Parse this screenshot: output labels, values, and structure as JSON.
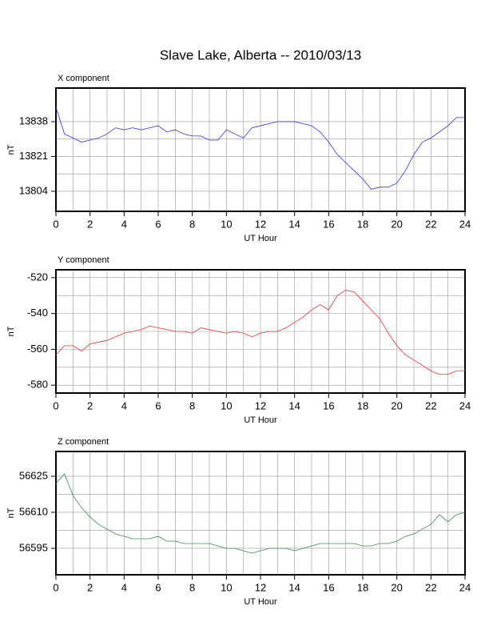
{
  "title": "Slave Lake, Alberta -- 2010/03/13",
  "chart_data": [
    {
      "type": "line",
      "title": "X component",
      "xlabel": "UT Hour",
      "ylabel": "nT",
      "color": "#3333ee",
      "grid": true,
      "x": [
        0,
        0.5,
        1,
        1.5,
        2,
        2.5,
        3,
        3.5,
        4,
        4.5,
        5,
        5.5,
        6,
        6.5,
        7,
        7.5,
        8,
        8.5,
        9,
        9.5,
        10,
        10.5,
        11,
        11.5,
        12,
        12.5,
        13,
        13.5,
        14,
        14.5,
        15,
        15.5,
        16,
        16.5,
        17,
        17.5,
        18,
        18.5,
        19,
        19.5,
        20,
        20.5,
        21,
        21.5,
        22,
        22.5,
        23,
        23.5,
        24
      ],
      "values": [
        13845,
        13832,
        13830,
        13828,
        13829,
        13830,
        13832,
        13835,
        13834,
        13835,
        13834,
        13835,
        13836,
        13833,
        13834,
        13832,
        13831,
        13831,
        13829,
        13829,
        13834,
        13832,
        13830,
        13835,
        13836,
        13837,
        13838,
        13838,
        13838,
        13837,
        13836,
        13833,
        13828,
        13822,
        13818,
        13814,
        13810,
        13805,
        13806,
        13806,
        13808,
        13814,
        13822,
        13828,
        13830,
        13833,
        13836,
        13840,
        13840
      ],
      "xlim": [
        0,
        24
      ],
      "xticks": [
        0,
        2,
        4,
        6,
        8,
        10,
        12,
        14,
        16,
        18,
        20,
        22,
        24
      ],
      "ylim": [
        13794.2,
        13854.4
      ],
      "yticks": [
        13804,
        13821,
        13838
      ]
    },
    {
      "type": "line",
      "title": "Y component",
      "xlabel": "UT Hour",
      "ylabel": "nT",
      "color": "#ee3333",
      "grid": true,
      "x": [
        0,
        0.5,
        1,
        1.5,
        2,
        2.5,
        3,
        3.5,
        4,
        4.5,
        5,
        5.5,
        6,
        6.5,
        7,
        7.5,
        8,
        8.5,
        9,
        9.5,
        10,
        10.5,
        11,
        11.5,
        12,
        12.5,
        13,
        13.5,
        14,
        14.5,
        15,
        15.5,
        16,
        16.5,
        17,
        17.5,
        18,
        18.5,
        19,
        19.5,
        20,
        20.5,
        21,
        21.5,
        22,
        22.5,
        23,
        23.5,
        24
      ],
      "values": [
        -563,
        -558,
        -558,
        -561,
        -557,
        -556,
        -555,
        -553,
        -551,
        -550,
        -549,
        -547,
        -548,
        -549,
        -550,
        -550,
        -551,
        -548,
        -549,
        -550,
        -551,
        -550,
        -551,
        -553,
        -551,
        -550,
        -550,
        -548,
        -545,
        -542,
        -538,
        -535,
        -538,
        -530,
        -527,
        -528,
        -533,
        -538,
        -543,
        -551,
        -558,
        -563,
        -566,
        -569,
        -572,
        -574,
        -574,
        -572,
        -572
      ],
      "xlim": [
        0,
        24
      ],
      "xticks": [
        0,
        2,
        4,
        6,
        8,
        10,
        12,
        14,
        16,
        18,
        20,
        22,
        24
      ],
      "ylim": [
        -584.4,
        -515.6
      ],
      "yticks": [
        -580,
        -560,
        -540,
        -520
      ]
    },
    {
      "type": "line",
      "title": "Z component",
      "xlabel": "UT Hour",
      "ylabel": "nT",
      "color": "#3a8a5a",
      "grid": true,
      "x": [
        0,
        0.5,
        1,
        1.5,
        2,
        2.5,
        3,
        3.5,
        4,
        4.5,
        5,
        5.5,
        6,
        6.5,
        7,
        7.5,
        8,
        8.5,
        9,
        9.5,
        10,
        10.5,
        11,
        11.5,
        12,
        12.5,
        13,
        13.5,
        14,
        14.5,
        15,
        15.5,
        16,
        16.5,
        17,
        17.5,
        18,
        18.5,
        19,
        19.5,
        20,
        20.5,
        21,
        21.5,
        22,
        22.5,
        23,
        23.5,
        24
      ],
      "values": [
        56622,
        56626,
        56617,
        56612,
        56608,
        56605,
        56603,
        56601,
        56600,
        56599,
        56599,
        56599,
        56600,
        56598,
        56598,
        56597,
        56597,
        56597,
        56597,
        56596,
        56595,
        56595,
        56594,
        56593,
        56594,
        56595,
        56595,
        56595,
        56594,
        56595,
        56596,
        56597,
        56597,
        56597,
        56597,
        56597,
        56596,
        56596,
        56597,
        56597,
        56598,
        56600,
        56601,
        56603,
        56605,
        56609,
        56606,
        56609,
        56610
      ],
      "xlim": [
        0,
        24
      ],
      "xticks": [
        0,
        2,
        4,
        6,
        8,
        10,
        12,
        14,
        16,
        18,
        20,
        22,
        24
      ],
      "ylim": [
        56584,
        56635.3
      ],
      "yticks": [
        56595,
        56610,
        56625
      ]
    }
  ]
}
